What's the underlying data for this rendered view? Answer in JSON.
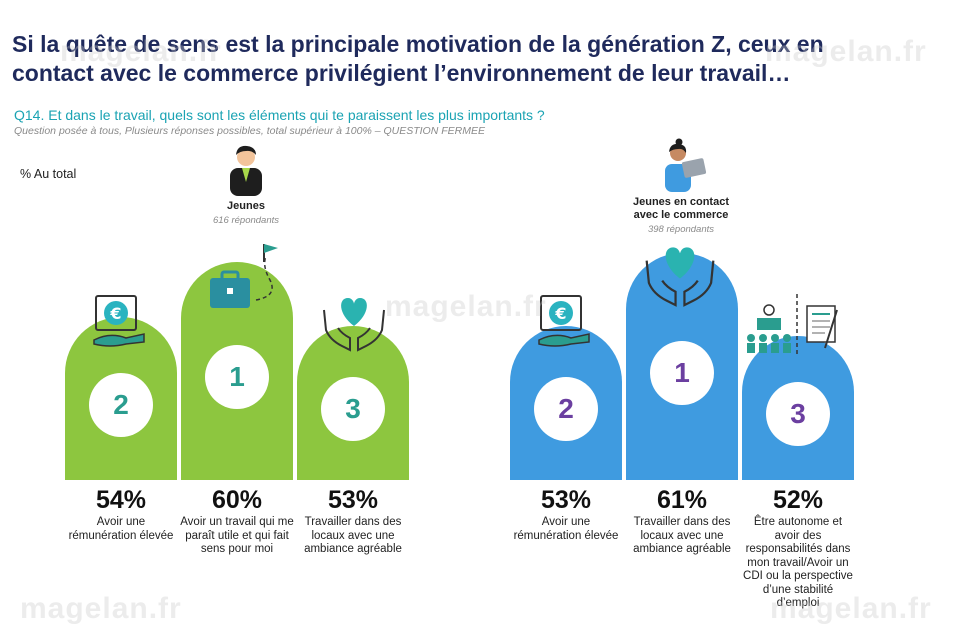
{
  "title_lines": [
    "Si la quête de sens est la principale motivation de la génération Z, ceux en",
    "contact avec le commerce privilégient l’environnement de leur travail…"
  ],
  "question": "Q14. Et dans le travail, quels sont les éléments qui te paraissent les plus importants ?",
  "note": "Question posée à tous, Plusieurs réponses possibles, total supérieur à 100% – QUESTION FERMEE",
  "total_label": "% Au total",
  "watermark": "magelan.fr",
  "colors": {
    "green": "#8dc63f",
    "blue": "#3f9be0",
    "title": "#1f2a5c",
    "question": "#1aa3b3",
    "teal": "#2a9d8f",
    "purple": "#6b3fa0"
  },
  "groups": [
    {
      "name": "Jeunes",
      "respondents": "616 répondants",
      "avatar_icon": "young-man-icon"
    },
    {
      "name_lines": [
        "Jeunes en contact",
        "avec le commerce"
      ],
      "respondents": "398 répondants",
      "avatar_icon": "woman-laptop-icon"
    }
  ],
  "chart_data": [
    {
      "type": "bar",
      "series_name": "Jeunes",
      "categories": [
        "Avoir une rémunération élevée",
        "Avoir un travail qui me paraît utile et qui fait sens pour moi",
        "Travailler dans des locaux avec une ambiance agréable"
      ],
      "ranks": [
        "2",
        "1",
        "3"
      ],
      "values": [
        54,
        60,
        53
      ],
      "value_labels": [
        "54%",
        "60%",
        "53%"
      ],
      "icons": [
        "euro-note-icon",
        "briefcase-flag-icon",
        "heart-hands-icon"
      ]
    },
    {
      "type": "bar",
      "series_name": "Jeunes en contact avec le commerce",
      "categories": [
        "Avoir une rémunération élevée",
        "Travailler dans des locaux avec une ambiance agréable",
        "Être autonome et avoir des responsabilités dans mon travail/Avoir un CDI ou la perspective d’une stabilité d’emploi"
      ],
      "ranks": [
        "2",
        "1",
        "3"
      ],
      "values": [
        53,
        61,
        52
      ],
      "value_labels": [
        "53%",
        "61%",
        "52%"
      ],
      "icons": [
        "euro-note-icon",
        "heart-hands-icon",
        "team-document-icon"
      ]
    }
  ]
}
